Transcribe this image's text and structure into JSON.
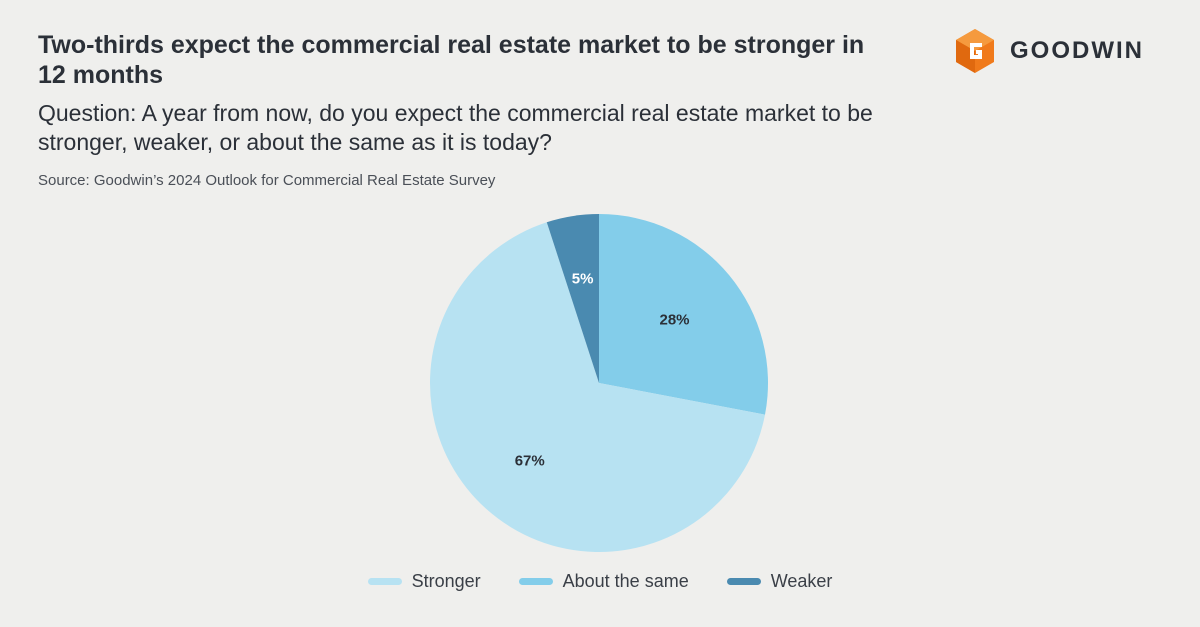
{
  "title": "Two-thirds expect the commercial real estate market to be stronger in 12 months",
  "question": "Question: A year from now, do you expect the commercial real estate market to be stronger, weaker, or about the same as it is today?",
  "source": "Source: Goodwin’s 2024 Outlook for Commercial Real Estate Survey",
  "logo": {
    "name": "GOODWIN",
    "icon": "goodwin-g-hexagon-icon",
    "color": "#f07a1b"
  },
  "chart_data": {
    "type": "pie",
    "title": "Two-thirds expect the commercial real estate market to be stronger in 12 months",
    "start_angle": "12 o'clock",
    "direction": "clockwise",
    "slices": [
      {
        "label": "About the same",
        "value": 28,
        "display": "28%",
        "color": "#83cdea",
        "text_color": "#2b3038"
      },
      {
        "label": "Stronger",
        "value": 67,
        "display": "67%",
        "color": "#b7e2f2",
        "text_color": "#2b3038"
      },
      {
        "label": "Weaker",
        "value": 5,
        "display": "5%",
        "color": "#4a8ab0",
        "text_color": "#ffffff"
      }
    ],
    "legend": {
      "placement": "bottom-center",
      "items": [
        {
          "label": "Stronger",
          "color": "#b7e2f2"
        },
        {
          "label": "About the same",
          "color": "#83cdea"
        },
        {
          "label": "Weaker",
          "color": "#4a8ab0"
        }
      ]
    }
  }
}
